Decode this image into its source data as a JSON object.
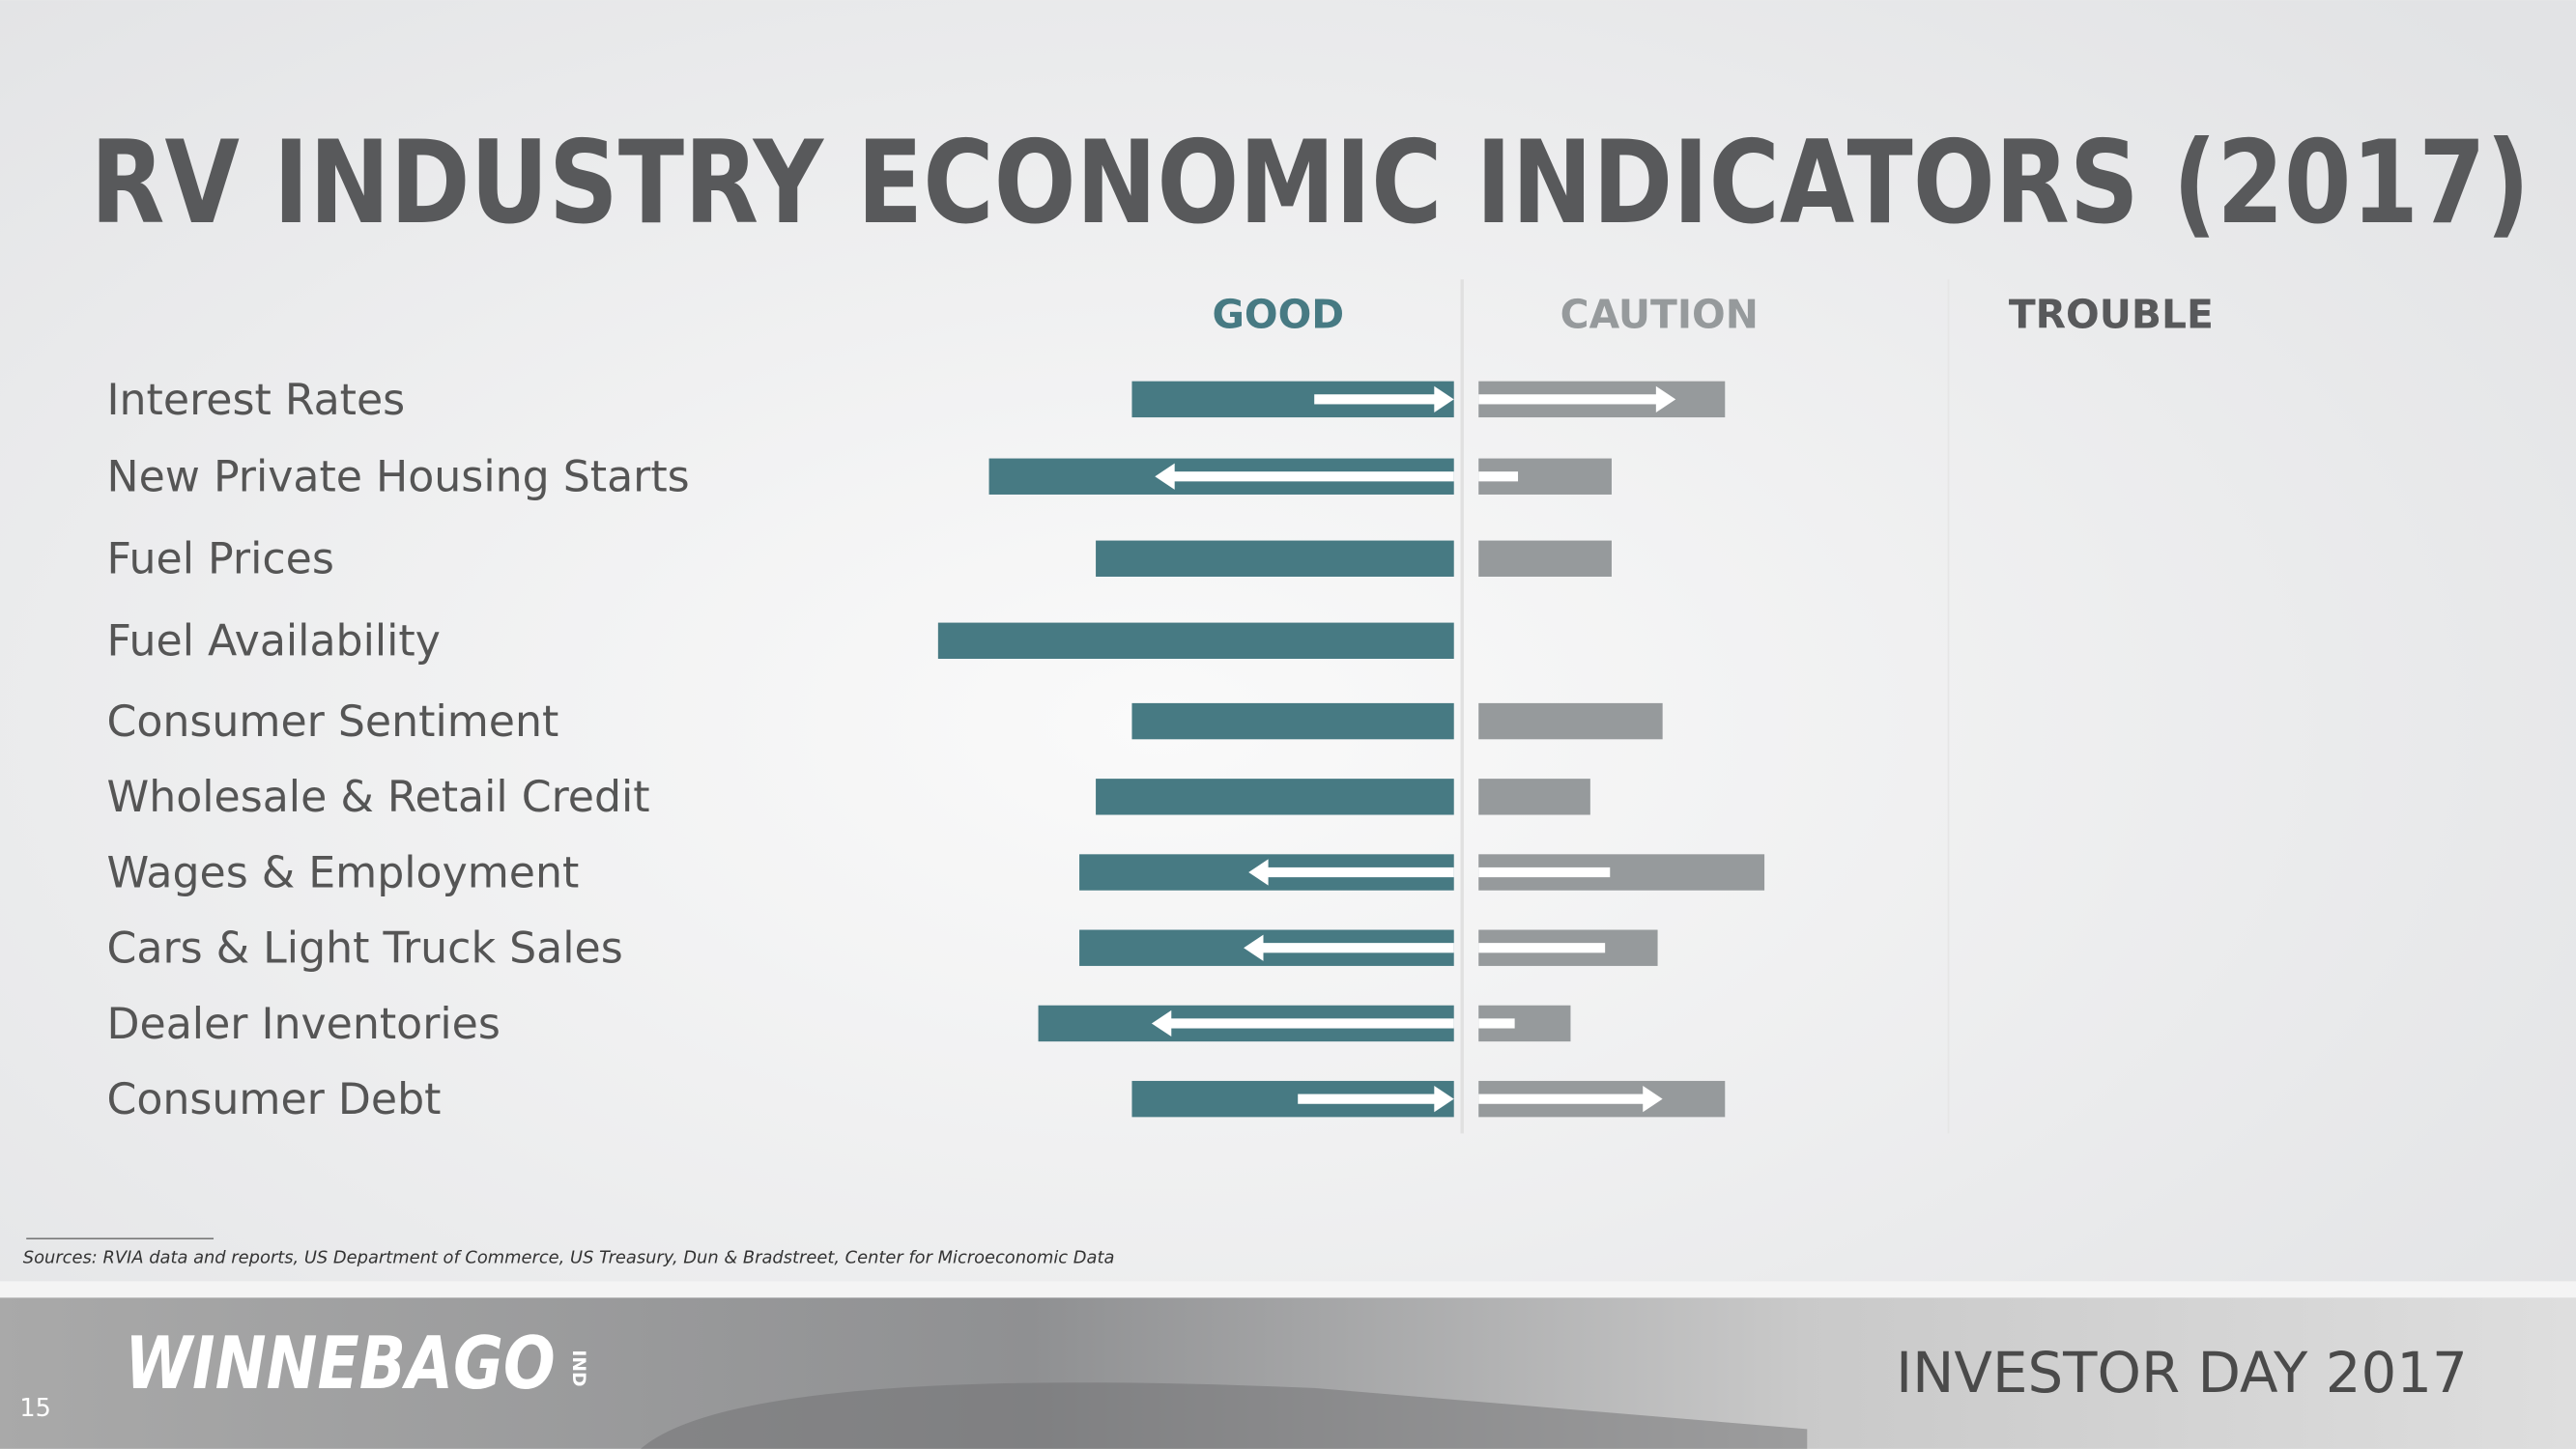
{
  "title": "RV INDUSTRY ECONOMIC INDICATORS (2017)",
  "columns": [
    "GOOD",
    "CAUTION",
    "TROUBLE"
  ],
  "rows": [
    "Interest Rates",
    "New Private Housing Starts",
    "Fuel Prices",
    "Fuel Availability",
    "Consumer Sentiment",
    "Wholesale & Retail Credit",
    "Wages & Employment",
    "Cars & Light Truck Sales",
    "Dealer Inventories",
    "Consumer Debt"
  ],
  "sources": "Sources: RVIA data and reports, US Department of Commerce, US Treasury, Dun & Bradstreet, Center for Microeconomic Data",
  "footer": {
    "brand": "WINNEBAGO",
    "brand_suffix": "IND",
    "event": "INVESTOR DAY 2017",
    "page": "15"
  }
}
